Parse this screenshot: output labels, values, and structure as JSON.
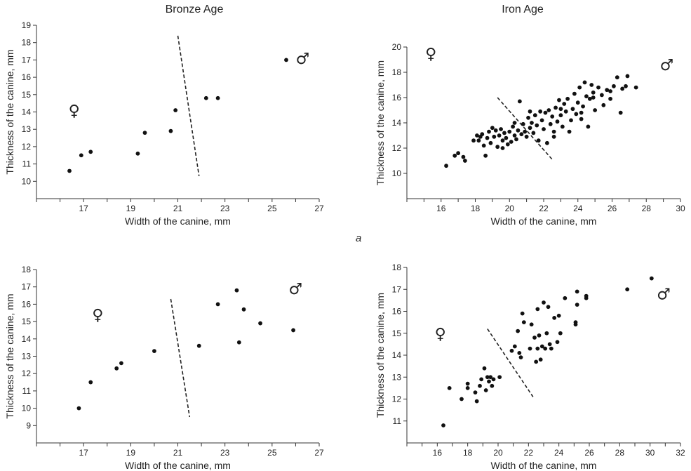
{
  "figure": {
    "column_titles": [
      "Bronze Age",
      "Iron Age"
    ],
    "panel_label": "a"
  },
  "chart_data": [
    {
      "type": "scatter",
      "title": "Bronze Age",
      "xlabel": "Width of the canine, mm",
      "ylabel": "Thickness of the canine, mm",
      "xlim": [
        15,
        27
      ],
      "ylim": [
        9,
        19
      ],
      "xticks": [
        17,
        19,
        21,
        23,
        25,
        27
      ],
      "yticks": [
        10,
        11,
        12,
        13,
        14,
        15,
        16,
        17,
        18,
        19
      ],
      "female_symbol": "♀",
      "male_symbol": "♂",
      "female_pos": [
        16.6,
        14.1
      ],
      "male_pos": [
        26.3,
        17.1
      ],
      "divider": [
        [
          21.0,
          18.4
        ],
        [
          21.9,
          10.3
        ]
      ],
      "points": [
        [
          16.4,
          10.6
        ],
        [
          16.9,
          11.5
        ],
        [
          17.3,
          11.7
        ],
        [
          19.3,
          11.6
        ],
        [
          19.6,
          12.8
        ],
        [
          20.7,
          12.9
        ],
        [
          20.9,
          14.1
        ],
        [
          22.2,
          14.8
        ],
        [
          22.7,
          14.8
        ],
        [
          25.6,
          17.0
        ]
      ]
    },
    {
      "type": "scatter",
      "title": "Iron Age",
      "xlabel": "Width of the canine, mm",
      "ylabel": "Thickness of the canine, mm",
      "xlim": [
        14,
        30
      ],
      "ylim": [
        8,
        20
      ],
      "xticks": [
        16,
        18,
        20,
        22,
        24,
        26,
        28,
        30
      ],
      "yticks": [
        10,
        12,
        14,
        16,
        18,
        20
      ],
      "female_symbol": "♀",
      "male_symbol": "♂",
      "female_pos": [
        15.4,
        19.5
      ],
      "male_pos": [
        29.2,
        18.6
      ],
      "divider": [
        [
          19.3,
          16.0
        ],
        [
          22.5,
          11.1
        ]
      ],
      "points": [
        [
          16.3,
          10.6
        ],
        [
          16.8,
          11.4
        ],
        [
          17.0,
          11.6
        ],
        [
          17.3,
          11.3
        ],
        [
          17.4,
          11.0
        ],
        [
          17.9,
          12.6
        ],
        [
          18.1,
          13.0
        ],
        [
          18.2,
          12.6
        ],
        [
          18.3,
          12.9
        ],
        [
          18.4,
          13.1
        ],
        [
          18.5,
          12.2
        ],
        [
          18.6,
          11.4
        ],
        [
          18.7,
          12.8
        ],
        [
          18.8,
          13.3
        ],
        [
          18.9,
          12.4
        ],
        [
          19.0,
          13.6
        ],
        [
          19.1,
          12.9
        ],
        [
          19.2,
          13.4
        ],
        [
          19.3,
          12.1
        ],
        [
          19.4,
          13.0
        ],
        [
          19.5,
          13.5
        ],
        [
          19.6,
          12.6
        ],
        [
          19.7,
          13.2
        ],
        [
          19.8,
          12.8
        ],
        [
          19.9,
          12.3
        ],
        [
          20.0,
          13.3
        ],
        [
          20.1,
          12.5
        ],
        [
          20.2,
          13.7
        ],
        [
          20.3,
          13.0
        ],
        [
          20.4,
          12.7
        ],
        [
          20.5,
          13.4
        ],
        [
          20.6,
          15.7
        ],
        [
          20.7,
          13.1
        ],
        [
          20.8,
          13.9
        ],
        [
          20.9,
          13.3
        ],
        [
          21.0,
          12.9
        ],
        [
          21.1,
          14.4
        ],
        [
          21.2,
          13.6
        ],
        [
          21.3,
          14.0
        ],
        [
          21.4,
          13.2
        ],
        [
          21.5,
          14.6
        ],
        [
          21.6,
          13.8
        ],
        [
          21.7,
          12.6
        ],
        [
          21.8,
          14.9
        ],
        [
          21.9,
          14.2
        ],
        [
          22.0,
          13.5
        ],
        [
          22.1,
          14.8
        ],
        [
          22.2,
          12.4
        ],
        [
          22.3,
          15.0
        ],
        [
          22.4,
          13.9
        ],
        [
          22.5,
          14.5
        ],
        [
          22.6,
          13.3
        ],
        [
          22.7,
          15.2
        ],
        [
          22.8,
          14.1
        ],
        [
          22.9,
          15.8
        ],
        [
          23.0,
          14.6
        ],
        [
          23.1,
          13.7
        ],
        [
          23.2,
          15.5
        ],
        [
          23.3,
          14.9
        ],
        [
          23.4,
          15.9
        ],
        [
          23.5,
          13.3
        ],
        [
          23.6,
          14.2
        ],
        [
          23.7,
          15.1
        ],
        [
          23.8,
          16.3
        ],
        [
          23.9,
          14.7
        ],
        [
          24.0,
          15.6
        ],
        [
          24.1,
          16.8
        ],
        [
          24.2,
          14.3
        ],
        [
          24.3,
          15.3
        ],
        [
          24.4,
          17.2
        ],
        [
          24.5,
          16.1
        ],
        [
          24.6,
          13.7
        ],
        [
          24.7,
          15.9
        ],
        [
          24.8,
          17.0
        ],
        [
          24.9,
          16.4
        ],
        [
          25.0,
          15.0
        ],
        [
          25.2,
          16.8
        ],
        [
          25.4,
          16.2
        ],
        [
          25.5,
          15.4
        ],
        [
          25.7,
          16.6
        ],
        [
          25.9,
          15.9
        ],
        [
          26.1,
          16.9
        ],
        [
          26.3,
          17.6
        ],
        [
          26.5,
          14.8
        ],
        [
          26.6,
          16.7
        ],
        [
          26.8,
          16.9
        ],
        [
          26.9,
          17.7
        ],
        [
          27.4,
          16.8
        ],
        [
          22.6,
          12.9
        ],
        [
          23.0,
          15.1
        ],
        [
          24.2,
          14.8
        ],
        [
          21.2,
          14.9
        ],
        [
          20.3,
          14.0
        ],
        [
          19.6,
          12.0
        ],
        [
          24.9,
          16.0
        ],
        [
          25.9,
          16.5
        ]
      ]
    },
    {
      "type": "scatter",
      "title": "",
      "xlabel": "Width of the canine, mm",
      "ylabel": "Thickness of the canine, mm",
      "xlim": [
        15,
        27
      ],
      "ylim": [
        8,
        18
      ],
      "xticks": [
        17,
        19,
        21,
        23,
        25,
        27
      ],
      "yticks": [
        9,
        10,
        11,
        12,
        13,
        14,
        15,
        16,
        17,
        18
      ],
      "female_symbol": "♀",
      "male_symbol": "♂",
      "female_pos": [
        17.6,
        15.4
      ],
      "male_pos": [
        26.0,
        16.9
      ],
      "divider": [
        [
          20.7,
          16.3
        ],
        [
          21.5,
          9.5
        ]
      ],
      "points": [
        [
          16.8,
          10.0
        ],
        [
          17.3,
          11.5
        ],
        [
          18.4,
          12.3
        ],
        [
          18.6,
          12.6
        ],
        [
          20.0,
          13.3
        ],
        [
          21.9,
          13.6
        ],
        [
          22.7,
          16.0
        ],
        [
          23.5,
          16.8
        ],
        [
          23.6,
          13.8
        ],
        [
          23.8,
          15.7
        ],
        [
          24.5,
          14.9
        ],
        [
          25.9,
          14.5
        ]
      ]
    },
    {
      "type": "scatter",
      "title": "",
      "xlabel": "Width of the canine, mm",
      "ylabel": "Thickness of the canine, mm",
      "xlim": [
        14,
        32
      ],
      "ylim": [
        10,
        18
      ],
      "xticks": [
        16,
        18,
        20,
        22,
        24,
        26,
        28,
        30,
        32
      ],
      "yticks": [
        11,
        12,
        13,
        14,
        15,
        16,
        17,
        18
      ],
      "female_symbol": "♀",
      "male_symbol": "♂",
      "female_pos": [
        16.2,
        15.0
      ],
      "male_pos": [
        30.9,
        16.8
      ],
      "divider": [
        [
          19.3,
          15.2
        ],
        [
          22.3,
          12.1
        ]
      ],
      "points": [
        [
          16.4,
          10.8
        ],
        [
          16.8,
          12.5
        ],
        [
          17.6,
          12.0
        ],
        [
          18.0,
          12.5
        ],
        [
          18.0,
          12.7
        ],
        [
          18.5,
          12.3
        ],
        [
          18.6,
          11.9
        ],
        [
          18.8,
          12.6
        ],
        [
          18.9,
          12.9
        ],
        [
          19.1,
          13.4
        ],
        [
          19.2,
          12.4
        ],
        [
          19.3,
          13.0
        ],
        [
          19.4,
          12.8
        ],
        [
          19.5,
          13.0
        ],
        [
          19.6,
          12.6
        ],
        [
          19.7,
          12.9
        ],
        [
          20.1,
          13.0
        ],
        [
          20.9,
          14.2
        ],
        [
          21.1,
          14.4
        ],
        [
          21.3,
          15.1
        ],
        [
          21.4,
          14.1
        ],
        [
          21.5,
          13.9
        ],
        [
          21.6,
          15.9
        ],
        [
          21.7,
          15.5
        ],
        [
          22.1,
          14.3
        ],
        [
          22.2,
          15.4
        ],
        [
          22.4,
          14.8
        ],
        [
          22.5,
          13.7
        ],
        [
          22.6,
          16.1
        ],
        [
          22.7,
          14.9
        ],
        [
          22.8,
          13.8
        ],
        [
          22.9,
          14.4
        ],
        [
          23.0,
          16.4
        ],
        [
          23.1,
          14.3
        ],
        [
          23.2,
          15.0
        ],
        [
          23.4,
          14.5
        ],
        [
          23.5,
          14.3
        ],
        [
          23.7,
          15.7
        ],
        [
          23.9,
          14.6
        ],
        [
          24.0,
          15.8
        ],
        [
          24.1,
          15.0
        ],
        [
          24.4,
          16.6
        ],
        [
          25.1,
          15.4
        ],
        [
          25.2,
          16.3
        ],
        [
          25.2,
          16.9
        ],
        [
          25.8,
          16.6
        ],
        [
          25.8,
          16.7
        ],
        [
          28.5,
          17.0
        ],
        [
          30.1,
          17.5
        ],
        [
          25.1,
          15.5
        ],
        [
          22.6,
          14.3
        ],
        [
          23.3,
          16.2
        ]
      ]
    }
  ]
}
